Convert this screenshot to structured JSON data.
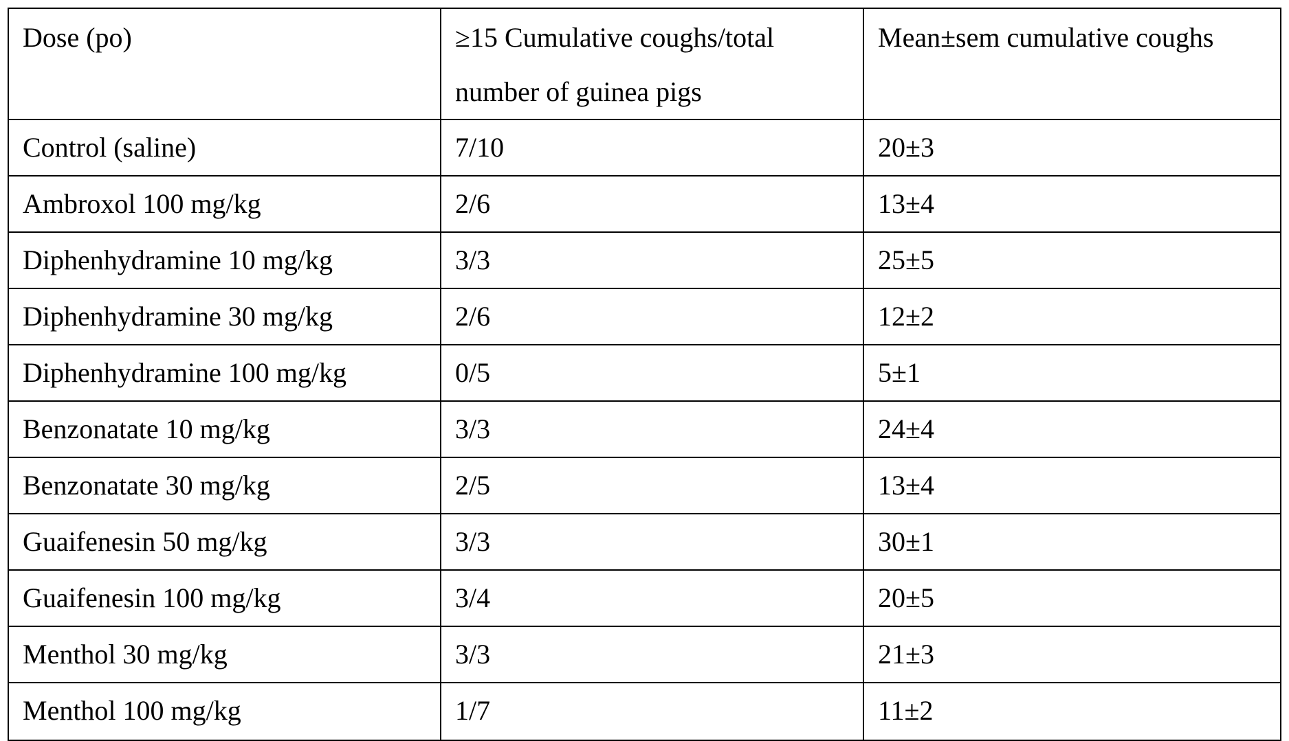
{
  "table": {
    "headers": [
      "Dose (po)",
      "≥15 Cumulative coughs/total number of guinea pigs",
      "Mean±sem cumulative coughs"
    ],
    "rows": [
      [
        "Control (saline)",
        "7/10",
        "20±3"
      ],
      [
        "Ambroxol 100 mg/kg",
        "2/6",
        "13±4"
      ],
      [
        "Diphenhydramine 10 mg/kg",
        "3/3",
        "25±5"
      ],
      [
        "Diphenhydramine 30 mg/kg",
        "2/6",
        "12±2"
      ],
      [
        "Diphenhydramine 100 mg/kg",
        "0/5",
        "5±1"
      ],
      [
        "Benzonatate 10 mg/kg",
        "3/3",
        "24±4"
      ],
      [
        "Benzonatate 30 mg/kg",
        "2/5",
        "13±4"
      ],
      [
        "Guaifenesin 50 mg/kg",
        "3/3",
        "30±1"
      ],
      [
        "Guaifenesin 100 mg/kg",
        "3/4",
        "20±5"
      ],
      [
        "Menthol 30 mg/kg",
        "3/3",
        "21±3"
      ],
      [
        "Menthol 100 mg/kg",
        "1/7",
        "11±2"
      ]
    ]
  }
}
